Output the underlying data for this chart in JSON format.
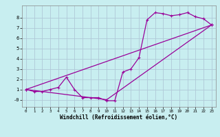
{
  "title": "",
  "xlabel": "Windchill (Refroidissement éolien,°C)",
  "bg_color": "#c8eef0",
  "grid_color": "#b0c8d8",
  "line_color": "#990099",
  "xlim": [
    -0.5,
    23.5
  ],
  "ylim": [
    -0.7,
    9.2
  ],
  "xticks": [
    0,
    1,
    2,
    3,
    4,
    5,
    6,
    7,
    8,
    9,
    10,
    11,
    12,
    13,
    14,
    15,
    16,
    17,
    18,
    19,
    20,
    21,
    22,
    23
  ],
  "yticks": [
    0,
    1,
    2,
    3,
    4,
    5,
    6,
    7,
    8
  ],
  "ytick_labels": [
    "-0",
    "1",
    "2",
    "3",
    "4",
    "5",
    "6",
    "7",
    "8"
  ],
  "line1_x": [
    0,
    1,
    2,
    3,
    4,
    5,
    6,
    7,
    8,
    9,
    10,
    11,
    12,
    13,
    14,
    15,
    16,
    17,
    18,
    19,
    20,
    21,
    22,
    23
  ],
  "line1_y": [
    1.0,
    0.8,
    0.8,
    1.0,
    1.2,
    2.2,
    1.0,
    0.2,
    0.2,
    0.2,
    -0.1,
    -0.1,
    2.7,
    3.0,
    4.1,
    7.8,
    8.5,
    8.4,
    8.2,
    8.3,
    8.5,
    8.1,
    7.9,
    7.3
  ],
  "line2_x": [
    0,
    23
  ],
  "line2_y": [
    1.0,
    7.3
  ],
  "line3_x": [
    0,
    10,
    23
  ],
  "line3_y": [
    1.0,
    0.0,
    7.3
  ]
}
